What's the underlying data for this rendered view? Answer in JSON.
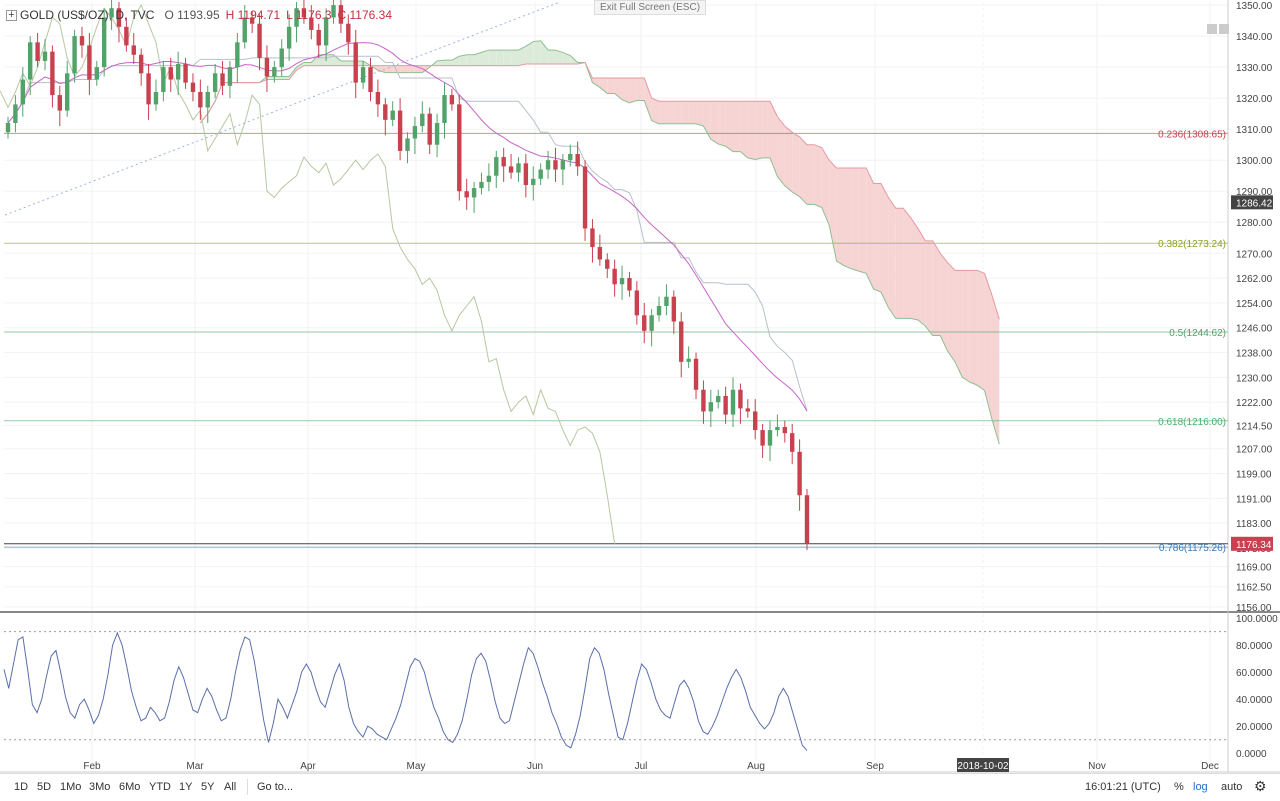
{
  "header": {
    "symbol": "GOLD (US$/OZ), D, TVC",
    "open": "O 1193.95",
    "high": "H 1194.71",
    "low": "L 1176.3",
    "close": "C 1176.34"
  },
  "exit_full_screen": "Exit Full Screen (ESC)",
  "range_buttons": [
    "1D",
    "5D",
    "1Mo",
    "3Mo",
    "6Mo",
    "YTD",
    "1Y",
    "5Y",
    "All"
  ],
  "goto_label": "Go to...",
  "clock": "16:01:21 (UTC)",
  "percent_btn": "%",
  "log_btn": "log",
  "auto_btn": "auto",
  "settings_icon": "gear-icon",
  "colors": {
    "up": "#53a26a",
    "down": "#c9404f",
    "kumo_bull": "#dcebd9",
    "kumo_bear": "#f6d4d4",
    "ma": "#c665c8",
    "stoch": "#5b6fa8",
    "fib_236": "#c9404f",
    "fib_382": "#8da327",
    "fib_5": "#53a26a",
    "fib_618": "#4caf6e",
    "fib_786": "#3b7db7"
  },
  "chart_data": [
    {
      "type": "candlestick",
      "title": "GOLD (US$/OZ), D, TVC",
      "x_ticks": [
        "Feb",
        "Mar",
        "Apr",
        "May",
        "Jun",
        "Jul",
        "Aug",
        "Sep",
        "2018-10-02",
        "Nov",
        "Dec"
      ],
      "y_ticks": [
        "1350.00",
        "1340.00",
        "1330.00",
        "1320.00",
        "1310.00",
        "1300.00",
        "1290.00",
        "1280.00",
        "1270.00",
        "1262.00",
        "1254.00",
        "1246.00",
        "1238.00",
        "1230.00",
        "1222.00",
        "1214.50",
        "1207.00",
        "1199.00",
        "1191.00",
        "1183.00",
        "1175.00",
        "1169.00",
        "1162.50",
        "1156.00"
      ],
      "ylim": [
        1155,
        1351
      ],
      "last_price": "1176.34",
      "crosshair_price": "1286.42",
      "crosshair_date": "2018-10-02",
      "fib_levels": [
        {
          "label": "0.236(1308.65)",
          "value": 1308.65
        },
        {
          "label": "0.382(1273.24)",
          "value": 1273.24
        },
        {
          "label": "0.5(1244.62)",
          "value": 1244.62
        },
        {
          "label": "0.618(1216.00)",
          "value": 1216.0
        },
        {
          "label": "0.786(1175.26)",
          "value": 1175.26
        }
      ],
      "closes": [
        1312,
        1318,
        1326,
        1338,
        1332,
        1335,
        1321,
        1316,
        1328,
        1340,
        1337,
        1326,
        1330,
        1346,
        1349,
        1343,
        1337,
        1334,
        1328,
        1318,
        1322,
        1330,
        1326,
        1331,
        1325,
        1322,
        1317,
        1322,
        1328,
        1324,
        1330,
        1338,
        1346,
        1344,
        1333,
        1327,
        1330,
        1336,
        1343,
        1349,
        1346,
        1342,
        1337,
        1346,
        1350,
        1344,
        1338,
        1325,
        1330,
        1322,
        1318,
        1313,
        1316,
        1303,
        1307,
        1311,
        1315,
        1305,
        1312,
        1321,
        1318,
        1290,
        1288,
        1291,
        1293,
        1295,
        1301,
        1298,
        1296,
        1299,
        1292,
        1294,
        1297,
        1300,
        1297,
        1300,
        1302,
        1298,
        1278,
        1272,
        1268,
        1265,
        1260,
        1262,
        1258,
        1250,
        1245,
        1250,
        1253,
        1256,
        1248,
        1235,
        1236,
        1226,
        1219,
        1222,
        1224,
        1218,
        1226,
        1220,
        1219,
        1213,
        1208,
        1213,
        1214,
        1212,
        1206,
        1192,
        1176.34
      ]
    },
    {
      "type": "line",
      "title": "",
      "y_ticks": [
        "100.0000",
        "80.0000",
        "60.0000",
        "40.0000",
        "20.0000",
        "0.0000"
      ],
      "ylim": [
        -5,
        103
      ],
      "values": [
        62,
        48,
        66,
        84,
        86,
        62,
        36,
        30,
        40,
        57,
        72,
        76,
        60,
        42,
        30,
        26,
        36,
        40,
        32,
        22,
        28,
        40,
        58,
        80,
        89,
        80,
        64,
        46,
        34,
        24,
        26,
        34,
        30,
        24,
        26,
        38,
        54,
        64,
        56,
        44,
        32,
        30,
        40,
        48,
        42,
        32,
        24,
        26,
        40,
        60,
        76,
        86,
        84,
        68,
        46,
        24,
        8,
        22,
        40,
        34,
        26,
        36,
        46,
        60,
        66,
        60,
        48,
        38,
        34,
        46,
        58,
        66,
        54,
        34,
        22,
        16,
        12,
        20,
        18,
        14,
        12,
        10,
        18,
        26,
        36,
        50,
        64,
        70,
        68,
        60,
        46,
        34,
        26,
        16,
        10,
        8,
        14,
        24,
        40,
        58,
        70,
        74,
        68,
        54,
        38,
        26,
        22,
        24,
        38,
        52,
        66,
        78,
        74,
        64,
        52,
        42,
        30,
        22,
        12,
        6,
        4,
        14,
        28,
        48,
        70,
        78,
        74,
        62,
        44,
        28,
        12,
        10,
        22,
        38,
        54,
        66,
        62,
        52,
        40,
        32,
        28,
        26,
        38,
        50,
        54,
        48,
        38,
        24,
        16,
        14,
        20,
        28,
        38,
        48,
        56,
        62,
        56,
        46,
        34,
        28,
        22,
        18,
        22,
        30,
        42,
        48,
        42,
        30,
        18,
        6,
        2
      ]
    }
  ]
}
